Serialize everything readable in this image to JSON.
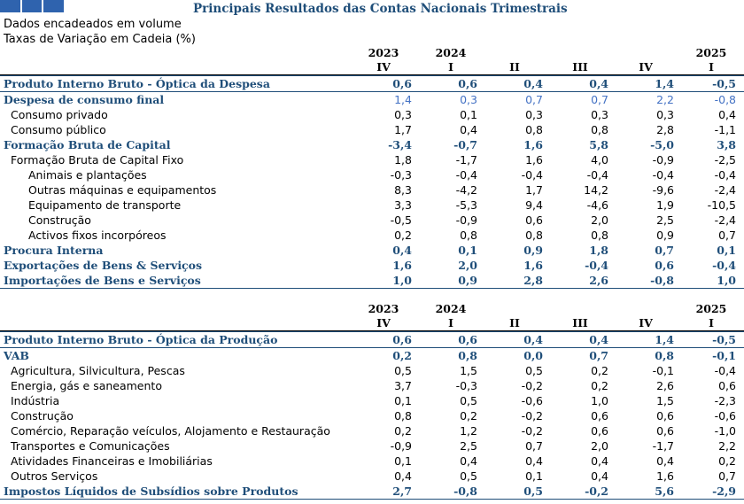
{
  "title": "Principais Resultados das Contas Nacionais Trimestrais",
  "subtitle1": "Dados encadeados em volume",
  "subtitle2": "Taxas de Variação em Cadeia (%)",
  "years": [
    "2023",
    "2024",
    "",
    "",
    "",
    "2025"
  ],
  "quarters": [
    "IV",
    "I",
    "II",
    "III",
    "IV",
    "I"
  ],
  "table1": [
    {
      "label": "Produto Interno Bruto - Óptica da Despesa",
      "v": [
        "0,6",
        "0,6",
        "0,4",
        "0,4",
        "1,4",
        "-0,5"
      ]
    },
    {
      "label": "Despesa de consumo final",
      "v": [
        "1,4",
        "0,3",
        "0,7",
        "0,7",
        "2,2",
        "-0,8"
      ]
    },
    {
      "label": "Consumo privado",
      "v": [
        "0,3",
        "0,1",
        "0,3",
        "0,3",
        "0,3",
        "0,4"
      ]
    },
    {
      "label": "Consumo público",
      "v": [
        "1,7",
        "0,4",
        "0,8",
        "0,8",
        "2,8",
        "-1,1"
      ]
    },
    {
      "label": "Formação Bruta de Capital",
      "v": [
        "-3,4",
        "-0,7",
        "1,6",
        "5,8",
        "-5,0",
        "3,8"
      ]
    },
    {
      "label": "Formação Bruta de Capital Fixo",
      "v": [
        "1,8",
        "-1,7",
        "1,6",
        "4,0",
        "-0,9",
        "-2,5"
      ]
    },
    {
      "label": "Animais e plantações",
      "v": [
        "-0,3",
        "-0,4",
        "-0,4",
        "-0,4",
        "-0,4",
        "-0,4"
      ]
    },
    {
      "label": "Outras máquinas e equipamentos",
      "v": [
        "8,3",
        "-4,2",
        "1,7",
        "14,2",
        "-9,6",
        "-2,4"
      ]
    },
    {
      "label": "Equipamento de transporte",
      "v": [
        "3,3",
        "-5,3",
        "9,4",
        "-4,6",
        "1,9",
        "-10,5"
      ]
    },
    {
      "label": "Construção",
      "v": [
        "-0,5",
        "-0,9",
        "0,6",
        "2,0",
        "2,5",
        "-2,4"
      ]
    },
    {
      "label": "Activos fixos incorpóreos",
      "v": [
        "0,2",
        "0,8",
        "0,8",
        "0,8",
        "0,9",
        "0,7"
      ]
    },
    {
      "label": "Procura Interna",
      "v": [
        "0,4",
        "0,1",
        "0,9",
        "1,8",
        "0,7",
        "0,1"
      ]
    },
    {
      "label": "Exportações de Bens & Serviços",
      "v": [
        "1,6",
        "2,0",
        "1,6",
        "-0,4",
        "0,6",
        "-0,4"
      ]
    },
    {
      "label": "Importações de Bens e Serviços",
      "v": [
        "1,0",
        "0,9",
        "2,8",
        "2,6",
        "-0,8",
        "1,0"
      ]
    }
  ],
  "table2": [
    {
      "label": "Produto Interno Bruto - Óptica da Produção",
      "v": [
        "0,6",
        "0,6",
        "0,4",
        "0,4",
        "1,4",
        "-0,5"
      ]
    },
    {
      "label": "VAB",
      "v": [
        "0,2",
        "0,8",
        "0,0",
        "0,7",
        "0,8",
        "-0,1"
      ]
    },
    {
      "label": "Agricultura, Silvicultura, Pescas",
      "v": [
        "0,5",
        "1,5",
        "0,5",
        "0,2",
        "-0,1",
        "-0,4"
      ]
    },
    {
      "label": "Energia, gás e saneamento",
      "v": [
        "3,7",
        "-0,3",
        "-0,2",
        "0,2",
        "2,6",
        "0,6"
      ]
    },
    {
      "label": "Indústria",
      "v": [
        "0,1",
        "0,5",
        "-0,6",
        "1,0",
        "1,5",
        "-2,3"
      ]
    },
    {
      "label": "Construção",
      "v": [
        "0,8",
        "0,2",
        "-0,2",
        "0,6",
        "0,6",
        "-0,6"
      ]
    },
    {
      "label": "Comércio, Reparação veículos, Alojamento e Restauração",
      "v": [
        "0,2",
        "1,2",
        "-0,2",
        "0,6",
        "0,6",
        "-1,0"
      ]
    },
    {
      "label": "Transportes e Comunicações",
      "v": [
        "-0,9",
        "2,5",
        "0,7",
        "2,0",
        "-1,7",
        "2,2"
      ]
    },
    {
      "label": "Atividades Financeiras e Imobiliárias",
      "v": [
        "0,1",
        "0,4",
        "0,4",
        "0,4",
        "0,4",
        "0,2"
      ]
    },
    {
      "label": "Outros Serviços",
      "v": [
        "0,4",
        "0,5",
        "0,1",
        "0,4",
        "1,6",
        "0,7"
      ]
    },
    {
      "label": "Impostos Líquidos de Subsídios sobre Produtos",
      "v": [
        "2,7",
        "-0,8",
        "0,5",
        "-0,2",
        "5,6",
        "-2,9"
      ]
    }
  ]
}
